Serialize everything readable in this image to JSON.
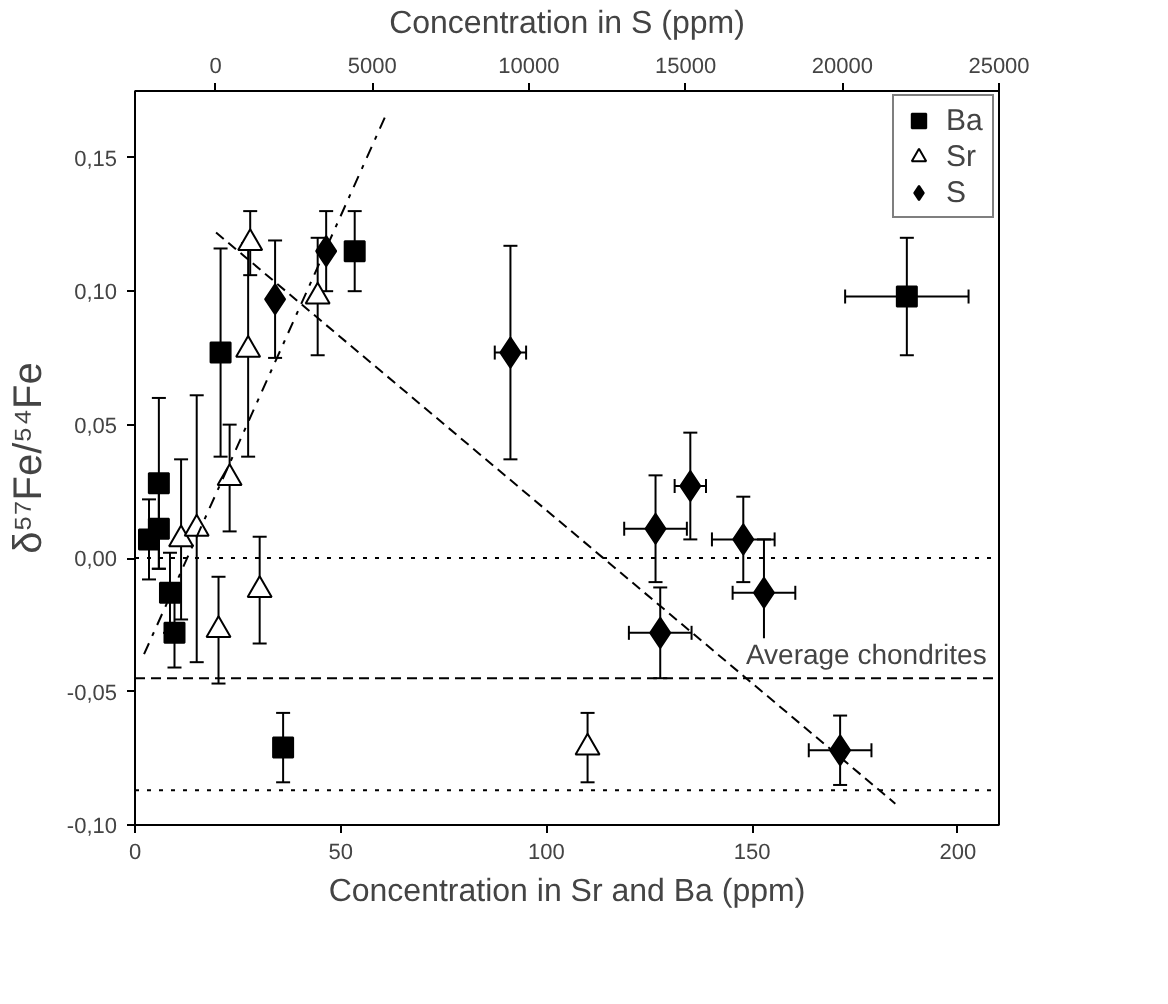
{
  "chart_data": {
    "type": "scatter",
    "xlabel": "Concentration in Sr and Ba (ppm)",
    "x2label": "Concentration in S (ppm)",
    "ylabel": "δ⁵⁷Fe/⁵⁴Fe",
    "xlim": [
      0,
      210
    ],
    "xticks": [
      0,
      50,
      100,
      150,
      200
    ],
    "x2lim": [
      -2570,
      25000
    ],
    "x2ticks": [
      0,
      5000,
      10000,
      15000,
      20000,
      25000
    ],
    "ylim": [
      -0.1,
      0.175
    ],
    "yticks": [
      {
        "value": -0.1,
        "label": "-0,10"
      },
      {
        "value": -0.05,
        "label": "-0,05"
      },
      {
        "value": 0,
        "label": "0,00"
      },
      {
        "value": 0.05,
        "label": "0,05"
      },
      {
        "value": 0.1,
        "label": "0,10"
      },
      {
        "value": 0.15,
        "label": "0,15"
      }
    ],
    "grid": false,
    "legend": "top right",
    "series": [
      {
        "name": "Ba",
        "color": "#000000",
        "marker": "square",
        "x": [
          3.4,
          5.8,
          5.8,
          8.5,
          9.6,
          20.8,
          36,
          53.4,
          187.6
        ],
        "values": [
          0.007,
          0.011,
          0.028,
          -0.013,
          -0.028,
          0.077,
          -0.071,
          0.115,
          0.098
        ],
        "errors": [
          0.015,
          0.015,
          0.032,
          0.015,
          0.013,
          0.039,
          0.013,
          0.015,
          0.022
        ],
        "xerrors": [
          null,
          null,
          null,
          null,
          null,
          null,
          null,
          null,
          15
        ]
      },
      {
        "name": "Sr",
        "color": "#ffffff",
        "marker": "triangle",
        "x": [
          11.2,
          15,
          20.3,
          23,
          27.5,
          28,
          30.3,
          44.4,
          110
        ],
        "values": [
          0.007,
          0.011,
          -0.027,
          0.03,
          0.078,
          0.118,
          -0.012,
          0.098,
          -0.071
        ],
        "errors": [
          0.03,
          0.05,
          0.02,
          0.02,
          0.04,
          0.012,
          0.02,
          0.022,
          0.013
        ]
      },
      {
        "name": "S",
        "color": "#000000",
        "marker": "diamond",
        "axis": "x2",
        "x": [
          1900,
          3530,
          9410,
          14040,
          14190,
          15150,
          16840,
          17500,
          19930
        ],
        "values": [
          0.097,
          0.115,
          0.077,
          0.011,
          -0.028,
          0.027,
          0.007,
          -0.013,
          -0.072
        ],
        "errors": [
          0.022,
          0.015,
          0.04,
          0.02,
          0.017,
          0.02,
          0.016,
          0.02,
          0.013
        ],
        "xerrors": [
          null,
          null,
          500,
          1000,
          1000,
          500,
          1000,
          1000,
          1000
        ]
      },
      {
        "type": "line",
        "color": "#000000",
        "line_style": "dashdot",
        "x": [
          2.2,
          60.7
        ],
        "values": [
          -0.036,
          0.165
        ]
      },
      {
        "type": "line",
        "color": "#000000",
        "line_style": "dashed",
        "x": [
          19.7,
          184.8
        ],
        "values": [
          0.122,
          -0.092
        ]
      }
    ],
    "ref_lines": [
      {
        "axis": "y",
        "value": 0,
        "line_style": "dotted"
      },
      {
        "axis": "y",
        "value": -0.045,
        "line_style": "dashed",
        "label": "Average chondrites"
      },
      {
        "axis": "y",
        "value": -0.087,
        "line_style": "dotted"
      }
    ]
  }
}
